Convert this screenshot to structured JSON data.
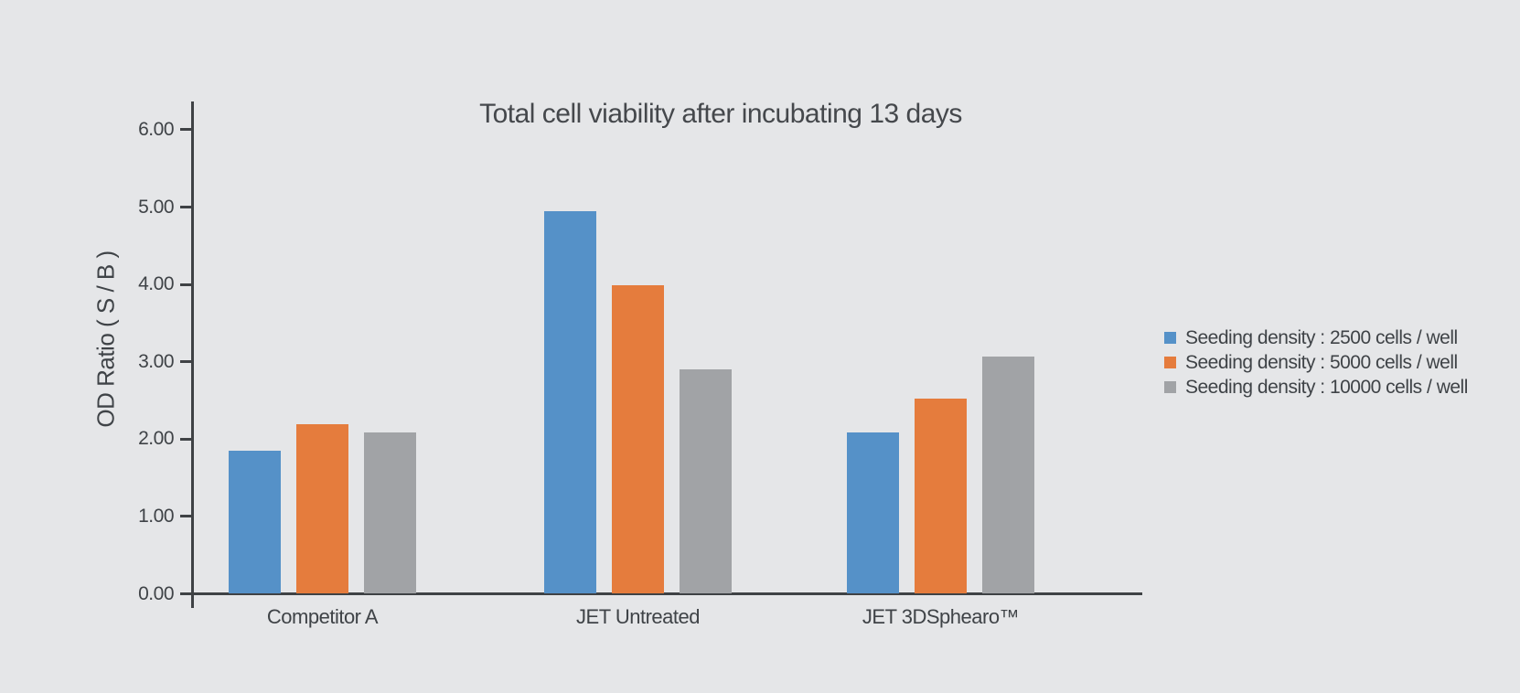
{
  "title": "Total cell viability after incubating 13 days",
  "colors": {
    "background": "#e5e6e8",
    "axis": "#3f4245",
    "text": "#3f4347",
    "series_blue": "#5591c8",
    "series_orange": "#e57c3d",
    "series_gray": "#a1a3a6"
  },
  "chart_data": {
    "type": "bar",
    "title": "Total cell viability after incubating 13 days",
    "categories": [
      "Competitor A",
      "JET Untreated",
      "JET 3DSphearo™"
    ],
    "series": [
      {
        "name": "Seeding density : 2500 cells / well",
        "color": "#5591c8",
        "values": [
          1.83,
          4.93,
          2.07
        ]
      },
      {
        "name": "Seeding density : 5000 cells / well",
        "color": "#e57c3d",
        "values": [
          2.17,
          3.97,
          2.51
        ]
      },
      {
        "name": "Seeding density : 10000 cells / well",
        "color": "#a1a3a6",
        "values": [
          2.07,
          2.88,
          3.05
        ]
      }
    ],
    "xlabel": "",
    "ylabel": "OD Ratio ( S / B )",
    "ylim": [
      0,
      6
    ],
    "ytick_step": 1,
    "ytick_labels": [
      "0.00",
      "1.00",
      "2.00",
      "3.00",
      "4.00",
      "5.00",
      "6.00"
    ],
    "grid": false,
    "legend_position": "right"
  }
}
